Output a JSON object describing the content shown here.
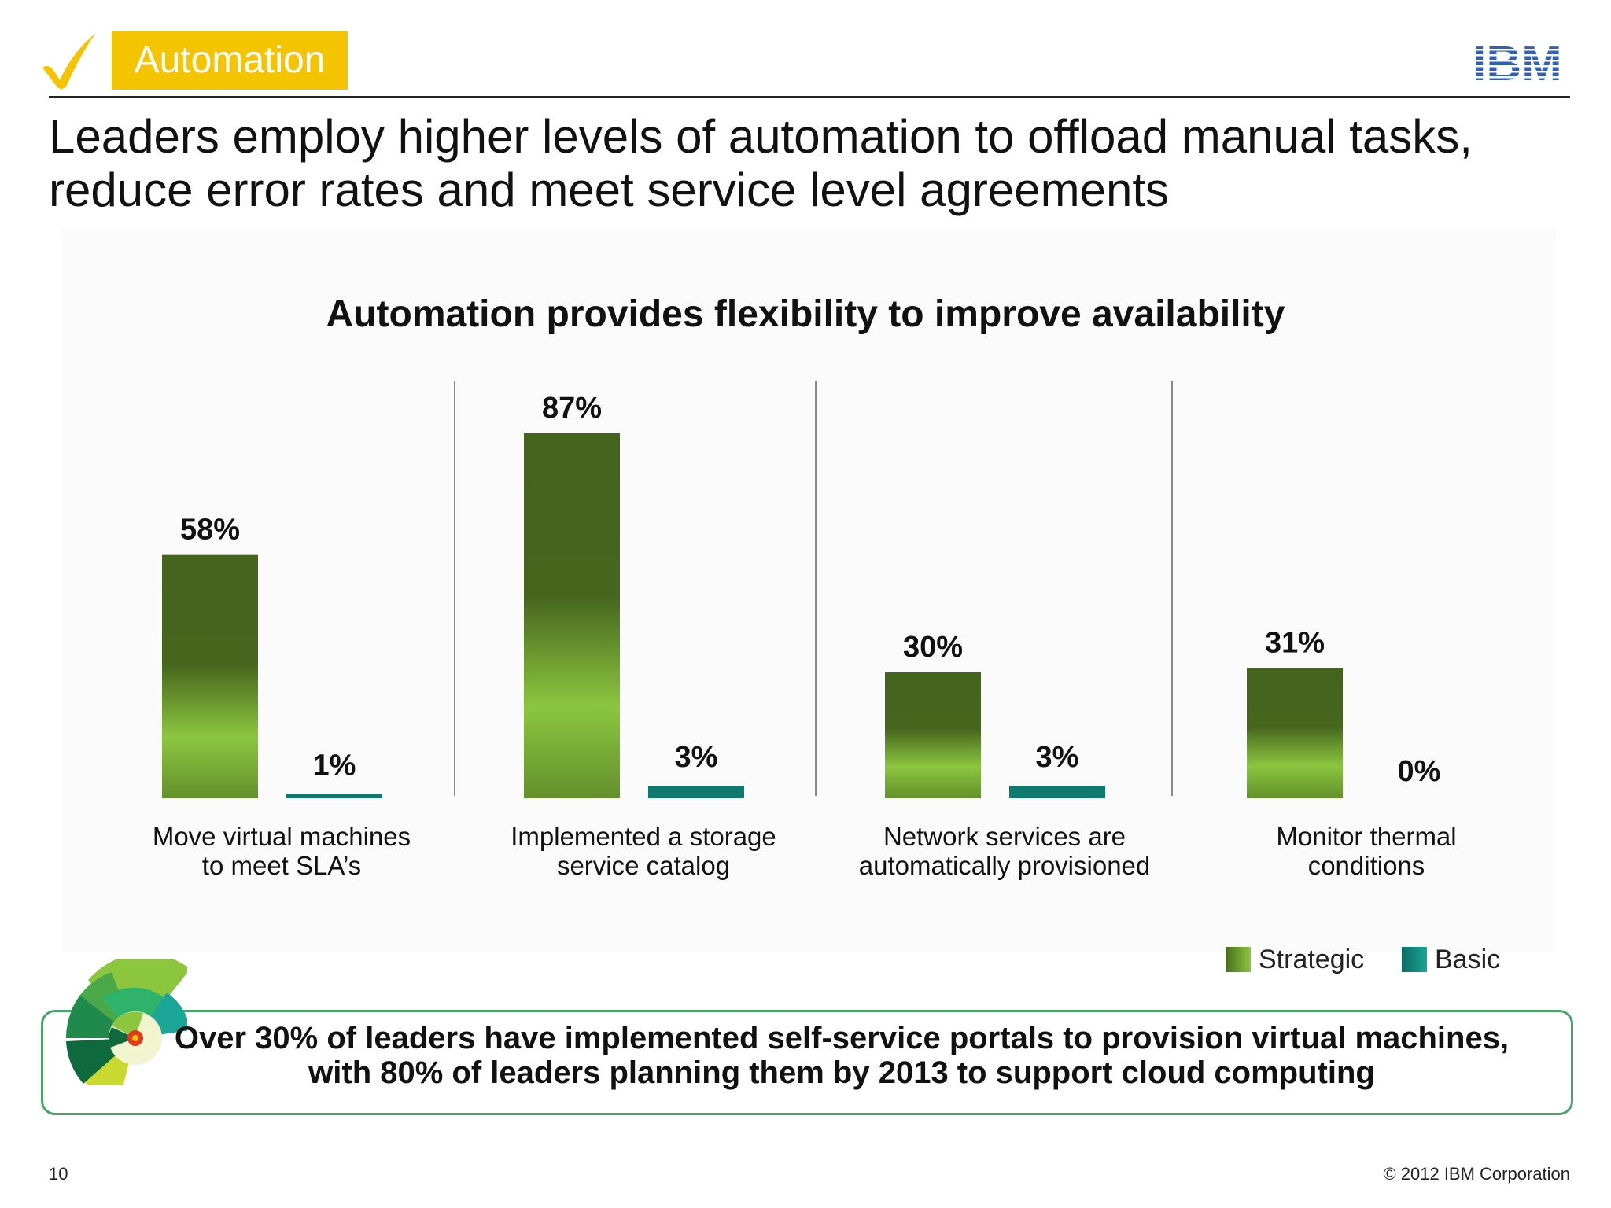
{
  "header": {
    "section_tag": "Automation",
    "logo_text": "IBM",
    "headline": "Leaders employ higher levels of automation to offload manual tasks, reduce error rates and meet service level agreements"
  },
  "colors": {
    "section_tag_bg": "#f5c400",
    "strategic_dark": "#44631d",
    "strategic_light": "#8cc63f",
    "basic": "#0e7a6f",
    "callout_border": "#4aa36a",
    "ibm_blue": "#2f5fbf"
  },
  "chart_data": {
    "type": "bar",
    "title": "Automation provides flexibility to improve availability",
    "categories": [
      [
        "Move virtual machines",
        "to meet SLA’s"
      ],
      [
        "Implemented a storage",
        "service catalog"
      ],
      [
        "Network services are",
        "automatically provisioned"
      ],
      [
        "Monitor thermal",
        "conditions"
      ]
    ],
    "series": [
      {
        "name": "Strategic",
        "values": [
          58,
          87,
          30,
          31
        ],
        "labels": [
          "58%",
          "87%",
          "30%",
          "31%"
        ]
      },
      {
        "name": "Basic",
        "values": [
          1,
          3,
          3,
          0
        ],
        "labels": [
          "1%",
          "3%",
          "3%",
          "0%"
        ]
      }
    ],
    "ylim": [
      0,
      100
    ],
    "grid": false,
    "legend_position": "bottom-right"
  },
  "callout": {
    "line1": "Over 30% of leaders have implemented self-service portals to provision virtual machines,",
    "line2": "with 80% of leaders planning them by 2013 to support cloud computing"
  },
  "footer": {
    "page_number": "10",
    "copyright": "© 2012 IBM Corporation"
  }
}
